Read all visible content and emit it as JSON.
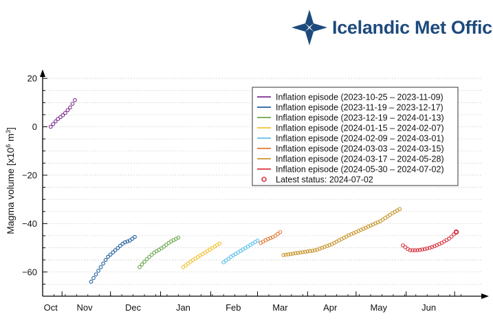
{
  "brand": {
    "name": "Icelandic Met Office",
    "color": "#1d4a7d",
    "icon": "snowflake-cross-icon"
  },
  "chart_data": {
    "type": "scatter",
    "ylabel": "Magma volume [x10⁶ m³]",
    "ylabel_text": "Magma volume [x10",
    "ylabel_sup1": "6",
    "ylabel_mid": " m",
    "ylabel_sup2": "3",
    "ylabel_end": "]",
    "ylim": [
      -70,
      24
    ],
    "yticks": [
      20,
      0,
      -20,
      -40,
      -60
    ],
    "xlim": [
      "2023-10-20",
      "2024-07-09"
    ],
    "xticks": [
      {
        "date": "2023-10-25",
        "label": "Oct"
      },
      {
        "date": "2023-11-15",
        "label": "Nov"
      },
      {
        "date": "2023-12-15",
        "label": "Dec"
      },
      {
        "date": "2024-01-15",
        "label": "Jan"
      },
      {
        "date": "2024-02-15",
        "label": "Feb"
      },
      {
        "date": "2024-03-15",
        "label": "Mar"
      },
      {
        "date": "2024-04-15",
        "label": "Apr"
      },
      {
        "date": "2024-05-15",
        "label": "May"
      },
      {
        "date": "2024-06-15",
        "label": "Jun"
      }
    ],
    "grid": "horizontal dotted",
    "legend_position": "top-right",
    "series": [
      {
        "name": "Inflation episode (2023-10-25 – 2023-11-09)",
        "color": "#7b2d8e",
        "points": [
          [
            "2023-10-25",
            0
          ],
          [
            "2023-10-29",
            3
          ],
          [
            "2023-11-02",
            5
          ],
          [
            "2023-11-06",
            8
          ],
          [
            "2023-11-09",
            11
          ]
        ]
      },
      {
        "name": "Inflation episode (2023-11-19 – 2023-12-17)",
        "color": "#1f5e9c",
        "points": [
          [
            "2023-11-19",
            -64
          ],
          [
            "2023-11-24",
            -59
          ],
          [
            "2023-11-29",
            -54
          ],
          [
            "2023-12-04",
            -51
          ],
          [
            "2023-12-09",
            -48
          ],
          [
            "2023-12-13",
            -47
          ],
          [
            "2023-12-17",
            -45
          ]
        ]
      },
      {
        "name": "Inflation episode (2023-12-19 – 2024-01-13)",
        "color": "#6aa84f",
        "points": [
          [
            "2023-12-19",
            -58
          ],
          [
            "2023-12-23",
            -55
          ],
          [
            "2023-12-28",
            -52
          ],
          [
            "2024-01-02",
            -50
          ],
          [
            "2024-01-07",
            -47.5
          ],
          [
            "2024-01-13",
            -45.5
          ]
        ]
      },
      {
        "name": "Inflation episode (2024-01-15 – 2024-02-07)",
        "color": "#f1c232",
        "points": [
          [
            "2024-01-15",
            -58
          ],
          [
            "2024-01-20",
            -55.5
          ],
          [
            "2024-01-26",
            -53
          ],
          [
            "2024-02-01",
            -50.5
          ],
          [
            "2024-02-07",
            -48
          ]
        ]
      },
      {
        "name": "Inflation episode (2024-02-09 – 2024-03-01)",
        "color": "#5bc0eb",
        "points": [
          [
            "2024-02-09",
            -56
          ],
          [
            "2024-02-14",
            -53.5
          ],
          [
            "2024-02-19",
            -51.5
          ],
          [
            "2024-02-24",
            -49.5
          ],
          [
            "2024-03-01",
            -47
          ]
        ]
      },
      {
        "name": "Inflation episode (2024-03-03 – 2024-03-15)",
        "color": "#e07b39",
        "points": [
          [
            "2024-03-03",
            -48
          ],
          [
            "2024-03-07",
            -46.5
          ],
          [
            "2024-03-11",
            -45.5
          ],
          [
            "2024-03-15",
            -43.5
          ]
        ]
      },
      {
        "name": "Inflation episode (2024-03-17 – 2024-05-28)",
        "color": "#c8962e",
        "points": [
          [
            "2024-03-17",
            -53
          ],
          [
            "2024-03-27",
            -52
          ],
          [
            "2024-04-06",
            -51
          ],
          [
            "2024-04-16",
            -48.5
          ],
          [
            "2024-04-26",
            -45
          ],
          [
            "2024-05-06",
            -42
          ],
          [
            "2024-05-16",
            -39
          ],
          [
            "2024-05-24",
            -35.5
          ],
          [
            "2024-05-28",
            -34
          ]
        ]
      },
      {
        "name": "Inflation episode (2024-05-30 – 2024-07-02)",
        "color": "#d9333f",
        "points": [
          [
            "2024-05-30",
            -49
          ],
          [
            "2024-06-03",
            -51
          ],
          [
            "2024-06-08",
            -51
          ],
          [
            "2024-06-13",
            -50.5
          ],
          [
            "2024-06-18",
            -49.5
          ],
          [
            "2024-06-23",
            -48
          ],
          [
            "2024-06-28",
            -46
          ],
          [
            "2024-07-02",
            -43.5
          ]
        ]
      }
    ],
    "latest_status": {
      "label": "Latest status: 2024-07-02",
      "date": "2024-07-02",
      "value": -43.5,
      "color": "#d9333f"
    }
  }
}
